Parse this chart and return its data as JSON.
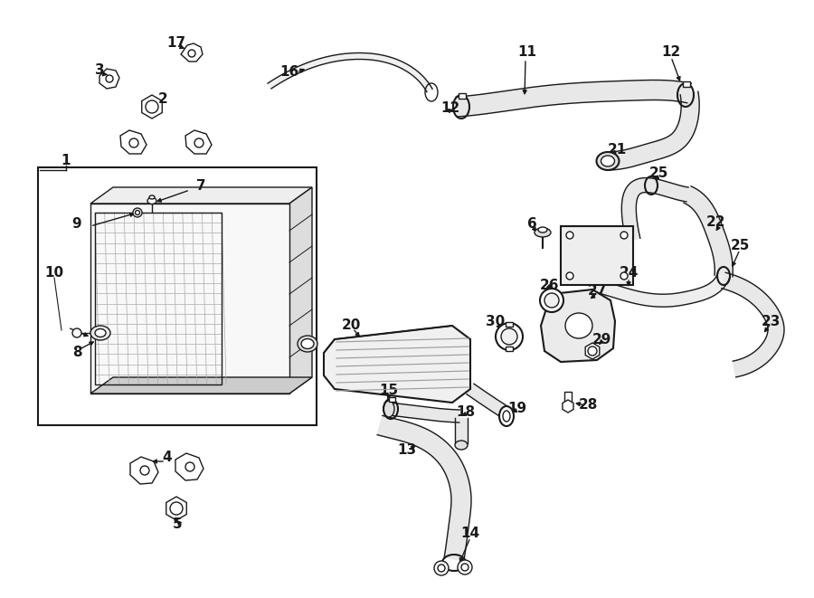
{
  "background_color": "#ffffff",
  "line_color": "#1a1a1a",
  "fig_width": 9.0,
  "fig_height": 6.61,
  "dpi": 100,
  "label_fontsize": 11,
  "label_fontsize_small": 10
}
